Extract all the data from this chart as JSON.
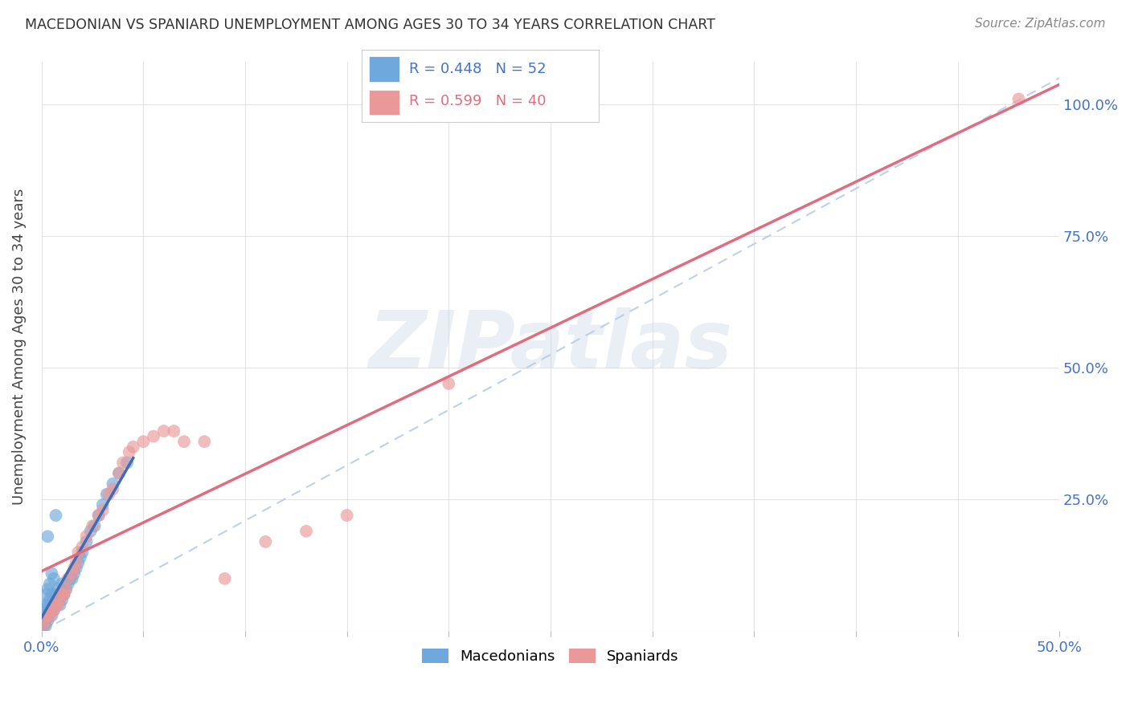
{
  "title": "MACEDONIAN VS SPANIARD UNEMPLOYMENT AMONG AGES 30 TO 34 YEARS CORRELATION CHART",
  "source": "Source: ZipAtlas.com",
  "ylabel": "Unemployment Among Ages 30 to 34 years",
  "xlim": [
    0.0,
    0.5
  ],
  "ylim": [
    0.0,
    1.08
  ],
  "xticks": [
    0.0,
    0.05,
    0.1,
    0.15,
    0.2,
    0.25,
    0.3,
    0.35,
    0.4,
    0.45,
    0.5
  ],
  "yticks": [
    0.0,
    0.25,
    0.5,
    0.75,
    1.0
  ],
  "xtick_labels": [
    "0.0%",
    "",
    "",
    "",
    "",
    "",
    "",
    "",
    "",
    "",
    "50.0%"
  ],
  "ytick_labels_right": [
    "25.0%",
    "50.0%",
    "75.0%",
    "100.0%"
  ],
  "legend_mac_R": "R = 0.448",
  "legend_mac_N": "N = 52",
  "legend_spa_R": "R = 0.599",
  "legend_spa_N": "N = 40",
  "mac_color": "#6fa8dc",
  "spa_color": "#ea9999",
  "mac_line_color": "#3d6eb5",
  "spa_line_color": "#e06c80",
  "dashed_line_color": "#b8cce4",
  "tick_label_color": "#4472c4",
  "watermark": "ZIPatlas",
  "background_color": "#ffffff",
  "mac_scatter_x": [
    0.001,
    0.001,
    0.001,
    0.001,
    0.002,
    0.002,
    0.002,
    0.002,
    0.002,
    0.003,
    0.003,
    0.003,
    0.003,
    0.003,
    0.004,
    0.004,
    0.004,
    0.005,
    0.005,
    0.005,
    0.005,
    0.006,
    0.006,
    0.006,
    0.007,
    0.007,
    0.007,
    0.008,
    0.008,
    0.009,
    0.009,
    0.01,
    0.01,
    0.011,
    0.012,
    0.013,
    0.014,
    0.015,
    0.016,
    0.017,
    0.018,
    0.019,
    0.02,
    0.022,
    0.024,
    0.026,
    0.028,
    0.03,
    0.032,
    0.035,
    0.038,
    0.042
  ],
  "mac_scatter_y": [
    0.01,
    0.02,
    0.03,
    0.04,
    0.01,
    0.02,
    0.03,
    0.05,
    0.07,
    0.02,
    0.03,
    0.05,
    0.08,
    0.18,
    0.04,
    0.06,
    0.09,
    0.03,
    0.05,
    0.07,
    0.11,
    0.04,
    0.06,
    0.1,
    0.05,
    0.07,
    0.22,
    0.06,
    0.08,
    0.05,
    0.07,
    0.06,
    0.09,
    0.07,
    0.08,
    0.09,
    0.1,
    0.1,
    0.11,
    0.12,
    0.13,
    0.14,
    0.15,
    0.17,
    0.19,
    0.2,
    0.22,
    0.24,
    0.26,
    0.28,
    0.3,
    0.32
  ],
  "spa_scatter_x": [
    0.001,
    0.002,
    0.003,
    0.004,
    0.005,
    0.006,
    0.007,
    0.008,
    0.009,
    0.01,
    0.011,
    0.012,
    0.013,
    0.015,
    0.016,
    0.017,
    0.018,
    0.02,
    0.022,
    0.025,
    0.028,
    0.03,
    0.033,
    0.035,
    0.038,
    0.04,
    0.043,
    0.045,
    0.05,
    0.055,
    0.06,
    0.065,
    0.07,
    0.08,
    0.09,
    0.11,
    0.13,
    0.15,
    0.2,
    0.48
  ],
  "spa_scatter_y": [
    0.01,
    0.02,
    0.03,
    0.03,
    0.04,
    0.04,
    0.05,
    0.05,
    0.06,
    0.07,
    0.07,
    0.08,
    0.1,
    0.11,
    0.12,
    0.13,
    0.15,
    0.16,
    0.18,
    0.2,
    0.22,
    0.23,
    0.26,
    0.27,
    0.3,
    0.32,
    0.34,
    0.35,
    0.36,
    0.37,
    0.38,
    0.38,
    0.36,
    0.36,
    0.1,
    0.17,
    0.19,
    0.22,
    0.47,
    1.01
  ]
}
